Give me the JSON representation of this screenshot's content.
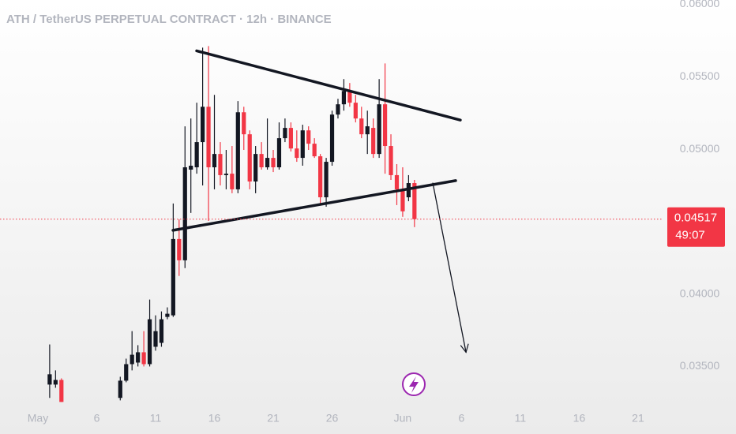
{
  "chart_data": {
    "type": "candlestick",
    "title": "ATH / TetherUS PERPETUAL CONTRACT · 12h · BINANCE",
    "up_color": "#131722",
    "down_color": "#f23645",
    "x": [
      2,
      2.5,
      3,
      8,
      8.5,
      9,
      9.5,
      10,
      10.5,
      11,
      11.5,
      12,
      12.5,
      13,
      13.5,
      14,
      14.5,
      15,
      15.5,
      16,
      16.5,
      17,
      17.5,
      18,
      18.5,
      19,
      19.5,
      20,
      20.5,
      21,
      21.5,
      22,
      22.5,
      23,
      23.5,
      24,
      24.5,
      25,
      25.5,
      26,
      26.5,
      27,
      27.5,
      28,
      28.5,
      29,
      29.5,
      30,
      30.5,
      31,
      31.5,
      32,
      32.5,
      33
    ],
    "open": [
      0.03375,
      0.03375,
      0.03407,
      0.03283,
      0.03402,
      0.03516,
      0.03527,
      0.03598,
      0.03516,
      0.03636,
      0.03663,
      0.03842,
      0.03853,
      0.0438,
      0.04233,
      0.04859,
      0.04875,
      0.05049,
      0.05293,
      0.04875,
      0.04967,
      0.04821,
      0.04831,
      0.04723,
      0.05255,
      0.05103,
      0.04777,
      0.04967,
      0.04875,
      0.0494,
      0.04875,
      0.05076,
      0.05147,
      0.05005,
      0.0494,
      0.0513,
      0.05038,
      0.04951,
      0.04668,
      0.04913,
      0.05239,
      0.0531,
      0.05402,
      0.05321,
      0.05212,
      0.05103,
      0.05147,
      0.04967,
      0.0531,
      0.05022,
      0.04821,
      0.04723,
      0.04668,
      0.04766
    ],
    "high": [
      0.03652,
      0.03473,
      0.03418,
      0.03429,
      0.03554,
      0.03744,
      0.03647,
      0.03744,
      0.03962,
      0.03853,
      0.0388,
      0.03908,
      0.04625,
      0.04516,
      0.05158,
      0.05212,
      0.05321,
      0.05701,
      0.05712,
      0.05375,
      0.05049,
      0.04995,
      0.05022,
      0.05332,
      0.05293,
      0.0513,
      0.05022,
      0.05049,
      0.05212,
      0.04995,
      0.05185,
      0.05212,
      0.05185,
      0.0513,
      0.05169,
      0.05158,
      0.05076,
      0.04967,
      0.0494,
      0.05266,
      0.05348,
      0.05484,
      0.05457,
      0.05375,
      0.05293,
      0.05266,
      0.05212,
      0.05484,
      0.05592,
      0.05103,
      0.04897,
      0.04875,
      0.04821,
      0.04788
    ],
    "low": [
      0.03283,
      0.03353,
      0.03255,
      0.03266,
      0.03391,
      0.03473,
      0.035,
      0.035,
      0.035,
      0.03609,
      0.03636,
      0.03826,
      0.03842,
      0.04125,
      0.04179,
      0.0456,
      0.04831,
      0.0475,
      0.04505,
      0.04723,
      0.0475,
      0.04723,
      0.04696,
      0.04696,
      0.04995,
      0.04723,
      0.04696,
      0.04859,
      0.04859,
      0.04842,
      0.04859,
      0.05049,
      0.04984,
      0.04913,
      0.04886,
      0.04995,
      0.0494,
      0.04625,
      0.04603,
      0.04886,
      0.05212,
      0.05266,
      0.05293,
      0.05185,
      0.05076,
      0.04967,
      0.0494,
      0.0494,
      0.04831,
      0.04788,
      0.04614,
      0.04533,
      0.04641,
      0.04462
    ],
    "close": [
      0.03446,
      0.03407,
      0.03255,
      0.03402,
      0.03516,
      0.03581,
      0.03598,
      0.03516,
      0.03826,
      0.03744,
      0.03826,
      0.03864,
      0.0438,
      0.04233,
      0.04875,
      0.04886,
      0.05049,
      0.05293,
      0.04875,
      0.04967,
      0.04821,
      0.04831,
      0.04723,
      0.05255,
      0.05103,
      0.04777,
      0.04967,
      0.04875,
      0.0494,
      0.04875,
      0.05076,
      0.05147,
      0.05005,
      0.0494,
      0.0513,
      0.05038,
      0.04951,
      0.04668,
      0.04913,
      0.05239,
      0.0531,
      0.05402,
      0.05321,
      0.05212,
      0.05103,
      0.05158,
      0.04967,
      0.0531,
      0.05022,
      0.04821,
      0.04723,
      0.04571,
      0.04766,
      0.04517
    ],
    "xlim": [
      -2.22,
      54.15
    ],
    "ylim": [
      0.0317,
      0.0603
    ],
    "xticks": [
      {
        "value": 1,
        "label": "May"
      },
      6,
      11,
      16,
      21,
      26,
      {
        "value": 32,
        "label": "Jun"
      },
      {
        "value": 37,
        "label": "6"
      },
      {
        "value": 42,
        "label": "11"
      },
      {
        "value": 47,
        "label": "16"
      },
      {
        "value": 52,
        "label": "21"
      }
    ],
    "yticks": [
      {
        "value": 0.06,
        "label": "0.06000"
      },
      {
        "value": 0.055,
        "label": "0.05500"
      },
      {
        "value": 0.05,
        "label": "0.05000"
      },
      {
        "value": 0.04,
        "label": "0.04000"
      },
      {
        "value": 0.035,
        "label": "0.03500"
      }
    ],
    "last_price": 0.04517,
    "last_price_color": "#f23645",
    "countdown": "49:07",
    "drawings": [
      {
        "kind": "line",
        "x": [
          14.49,
          36.9
        ],
        "y": [
          0.05679,
          0.05201
        ]
      },
      {
        "kind": "line",
        "x": [
          12.48,
          36.5
        ],
        "y": [
          0.0444,
          0.04783
        ]
      },
      {
        "kind": "arrow",
        "x": [
          34.56,
          37.38
        ],
        "y": [
          0.04766,
          0.03598
        ]
      }
    ]
  }
}
